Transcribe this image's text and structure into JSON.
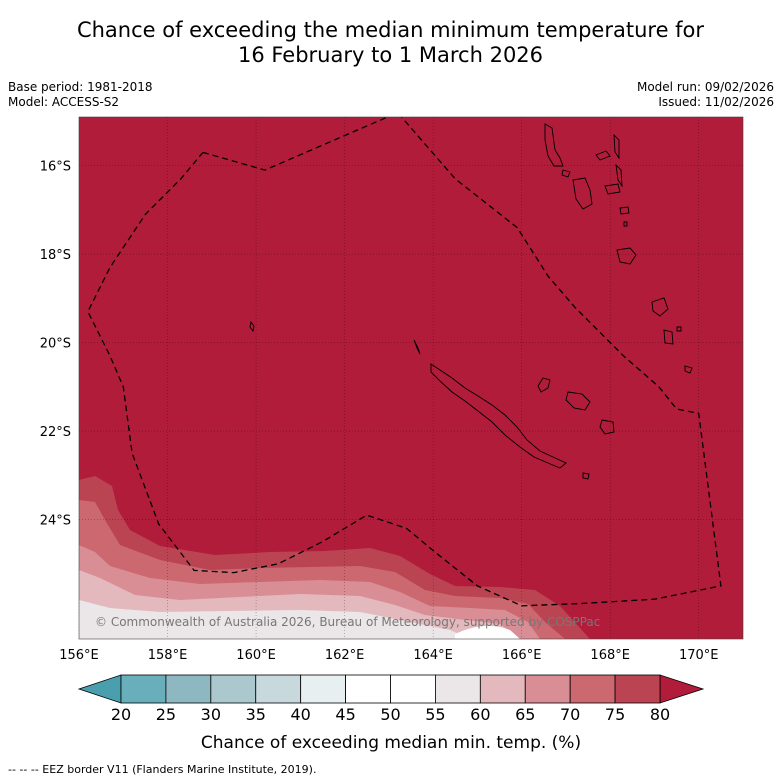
{
  "title": {
    "line1": "Chance of exceeding the median minimum temperature for",
    "line2": "16 February to 1 March 2026"
  },
  "meta": {
    "base_period": "Base period: 1981-2018",
    "model": "Model: ACCESS-S2",
    "model_run": "Model run: 09/02/2026",
    "issued": "Issued: 11/02/2026"
  },
  "map": {
    "region_lon": [
      156,
      171
    ],
    "region_lat": [
      -26.7,
      -14.9
    ],
    "lat_ticks": [
      {
        "value": -16,
        "label": "16°S"
      },
      {
        "value": -18,
        "label": "18°S"
      },
      {
        "value": -20,
        "label": "20°S"
      },
      {
        "value": -22,
        "label": "22°S"
      },
      {
        "value": -24,
        "label": "24°S"
      }
    ],
    "lon_ticks": [
      {
        "value": 156,
        "label": "156°E"
      },
      {
        "value": 158,
        "label": "158°E"
      },
      {
        "value": 160,
        "label": "160°E"
      },
      {
        "value": 162,
        "label": "162°E"
      },
      {
        "value": 164,
        "label": "164°E"
      },
      {
        "value": 166,
        "label": "166°E"
      },
      {
        "value": 168,
        "label": "168°E"
      },
      {
        "value": 170,
        "label": "170°E"
      }
    ],
    "copyright": "© Commonwealth of Australia 2026, Bureau of Meteorology, supported by COSPPac",
    "eez_border": [
      [
        158.8,
        -15.7
      ],
      [
        160.2,
        -16.1
      ],
      [
        163.2,
        -14.8
      ],
      [
        164.5,
        -16.3
      ],
      [
        165.9,
        -17.4
      ],
      [
        166.6,
        -18.5
      ],
      [
        167.2,
        -19.2
      ],
      [
        168.3,
        -20.3
      ],
      [
        169.1,
        -21.0
      ],
      [
        169.5,
        -21.5
      ],
      [
        170.0,
        -21.6
      ],
      [
        170.5,
        -25.5
      ],
      [
        169.0,
        -25.8
      ],
      [
        167.3,
        -25.9
      ],
      [
        166.0,
        -25.95
      ],
      [
        165.0,
        -25.5
      ],
      [
        164.0,
        -24.7
      ],
      [
        163.4,
        -24.2
      ],
      [
        162.5,
        -23.9
      ],
      [
        161.5,
        -24.5
      ],
      [
        160.5,
        -25.0
      ],
      [
        159.5,
        -25.2
      ],
      [
        158.6,
        -25.15
      ],
      [
        157.8,
        -24.1
      ],
      [
        157.2,
        -22.5
      ],
      [
        157.0,
        -21.0
      ],
      [
        156.7,
        -20.3
      ],
      [
        156.2,
        -19.3
      ],
      [
        156.7,
        -18.3
      ],
      [
        157.5,
        -17.1
      ],
      [
        158.3,
        -16.3
      ],
      [
        158.8,
        -15.7
      ]
    ]
  },
  "colorbar": {
    "bounds": [
      20,
      25,
      30,
      35,
      40,
      45,
      50,
      55,
      60,
      65,
      70,
      75,
      80
    ],
    "colors": [
      "#69afbb",
      "#8db8c2",
      "#aac8cd",
      "#c7d9dd",
      "#e8eff1",
      "#ffffff",
      "#ffffff",
      "#ebe6e7",
      "#e3b9be",
      "#d98e96",
      "#cc6870",
      "#bb4453"
    ],
    "under_color": "#4a9fae",
    "over_color": "#b01c3a",
    "label": "Chance of exceeding median min. temp. (%)"
  },
  "footnote": "--  --  -- EEZ border V11 (Flanders Marine Institute, 2019)."
}
